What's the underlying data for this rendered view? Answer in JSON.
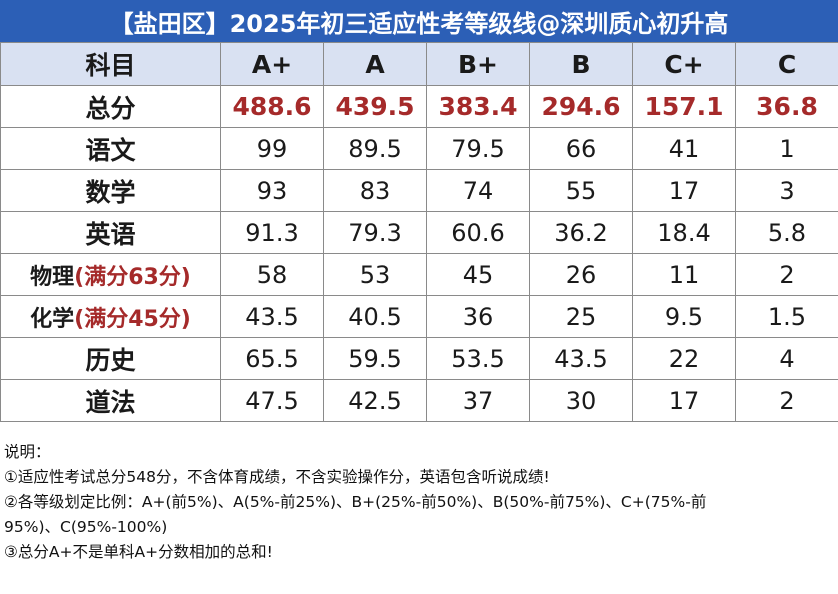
{
  "title": "【盐田区】2025年初三适应性考等级线@深圳质心初升高",
  "header": {
    "subject": "科目",
    "grades": [
      "A+",
      "A",
      "B+",
      "B",
      "C+",
      "C"
    ]
  },
  "rows": [
    {
      "subject": "总分",
      "note": "",
      "values": [
        "488.6",
        "439.5",
        "383.4",
        "294.6",
        "157.1",
        "36.8"
      ]
    },
    {
      "subject": "语文",
      "note": "",
      "values": [
        "99",
        "89.5",
        "79.5",
        "66",
        "41",
        "1"
      ]
    },
    {
      "subject": "数学",
      "note": "",
      "values": [
        "93",
        "83",
        "74",
        "55",
        "17",
        "3"
      ]
    },
    {
      "subject": "英语",
      "note": "",
      "values": [
        "91.3",
        "79.3",
        "60.6",
        "36.2",
        "18.4",
        "5.8"
      ]
    },
    {
      "subject": "物理",
      "note": "(满分63分)",
      "values": [
        "58",
        "53",
        "45",
        "26",
        "11",
        "2"
      ]
    },
    {
      "subject": "化学",
      "note": "(满分45分)",
      "values": [
        "43.5",
        "40.5",
        "36",
        "25",
        "9.5",
        "1.5"
      ]
    },
    {
      "subject": "历史",
      "note": "",
      "values": [
        "65.5",
        "59.5",
        "53.5",
        "43.5",
        "22",
        "4"
      ]
    },
    {
      "subject": "道法",
      "note": "",
      "values": [
        "47.5",
        "42.5",
        "37",
        "30",
        "17",
        "2"
      ]
    }
  ],
  "notes": {
    "heading": "说明：",
    "line1": "①适应性考试总分548分，不含体育成绩，不含实验操作分，英语包含听说成绩!",
    "line2": "②各等级划定比例：A+(前5%)、A(5%-前25%)、B+(25%-前50%)、B(50%-前75%)、C+(75%-前",
    "line3": "95%)、C(95%-100%)",
    "line4": "③总分A+不是单科A+分数相加的总和!"
  },
  "colors": {
    "title_bg": "#2c5fb6",
    "header_bg": "#d9e1f2",
    "accent_red": "#a52a2a"
  }
}
